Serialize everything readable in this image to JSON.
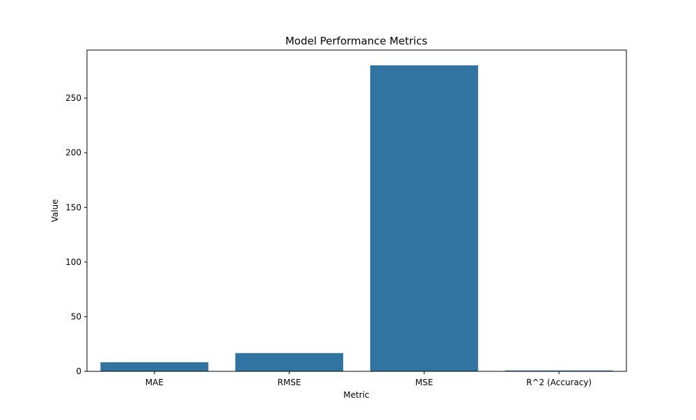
{
  "chart_data": {
    "type": "bar",
    "title": "Model Performance Metrics",
    "xlabel": "Metric",
    "ylabel": "Value",
    "categories": [
      "MAE",
      "RMSE",
      "MSE",
      "R^2 (Accuracy)"
    ],
    "values": [
      8.3,
      16.7,
      280.0,
      0.78
    ],
    "ylim": [
      0,
      294
    ],
    "yticks": [
      0,
      50,
      100,
      150,
      200,
      250
    ],
    "grid": false,
    "bar_color": "#3274a1"
  }
}
